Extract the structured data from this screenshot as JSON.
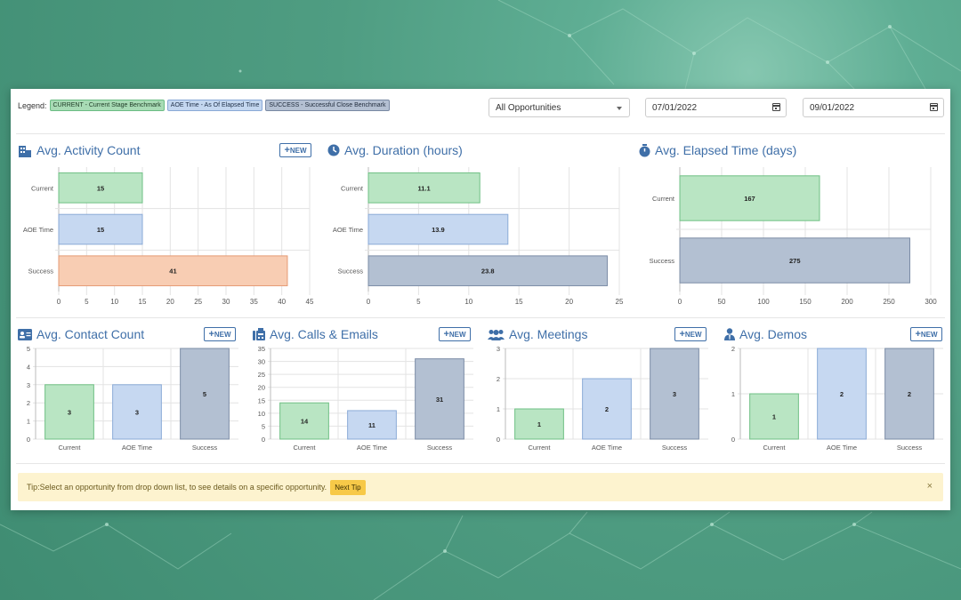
{
  "legend": {
    "label": "Legend:",
    "current": "CURRENT - Current Stage Benchmark",
    "aoe": "AOE Time - As Of Elapsed Time",
    "success": "SUCCESS - Successful Close Benchmark"
  },
  "filters": {
    "opportunity": "All Opportunities",
    "start_date": "07/01/2022",
    "end_date": "09/01/2022"
  },
  "new_label": "NEW",
  "tip": {
    "text": "Tip:Select an opportunity from drop down list, to see details on a specific opportunity.",
    "button": "Next Tip",
    "close": "×"
  },
  "colors": {
    "current_fill": "#b9e5c3",
    "current_stroke": "#6fc084",
    "aoe_fill": "#c6d8f1",
    "aoe_stroke": "#8aaad7",
    "success_orange_fill": "#f8cdb3",
    "success_orange_stroke": "#e59a74",
    "success_fill": "#b3c0d2",
    "success_stroke": "#7b8ca6",
    "title": "#3f6fa8"
  },
  "chart_data": [
    {
      "id": "activity",
      "type": "bar",
      "orientation": "horizontal",
      "title": "Avg. Activity Count",
      "icon": "building-icon",
      "has_new": true,
      "categories": [
        "Current",
        "AOE Time",
        "Success"
      ],
      "values": [
        15,
        15,
        41
      ],
      "labels": [
        "15",
        "15",
        "41"
      ],
      "success_color": "orange",
      "xlim": [
        0,
        45
      ],
      "ticks": [
        0,
        5,
        10,
        15,
        20,
        25,
        30,
        35,
        40,
        45
      ],
      "grid": true
    },
    {
      "id": "duration",
      "type": "bar",
      "orientation": "horizontal",
      "title": "Avg. Duration (hours)",
      "icon": "clock-icon",
      "has_new": false,
      "categories": [
        "Current",
        "AOE Time",
        "Success"
      ],
      "values": [
        11.1,
        13.9,
        23.8
      ],
      "labels": [
        "11.1",
        "13.9",
        "23.8"
      ],
      "success_color": "slate",
      "xlim": [
        0,
        25
      ],
      "ticks": [
        0,
        5,
        10,
        15,
        20,
        25
      ],
      "grid": true
    },
    {
      "id": "elapsed",
      "type": "bar",
      "orientation": "horizontal",
      "title": "Avg. Elapsed Time (days)",
      "icon": "stopwatch-icon",
      "has_new": false,
      "categories": [
        "Current",
        "Success"
      ],
      "values": [
        167,
        275
      ],
      "labels": [
        "167",
        "275"
      ],
      "success_color": "slate",
      "xlim": [
        0,
        300
      ],
      "ticks": [
        0,
        50,
        100,
        150,
        200,
        250,
        300
      ],
      "grid": true
    },
    {
      "id": "contact",
      "type": "bar",
      "orientation": "vertical",
      "title": "Avg. Contact Count",
      "icon": "contact-card-icon",
      "has_new": true,
      "categories": [
        "Current",
        "AOE Time",
        "Success"
      ],
      "values": [
        3,
        3,
        5
      ],
      "labels": [
        "3",
        "3",
        "5"
      ],
      "ylim": [
        0,
        5
      ],
      "ticks": [
        0,
        1,
        2,
        3,
        4,
        5
      ],
      "grid": true
    },
    {
      "id": "calls",
      "type": "bar",
      "orientation": "vertical",
      "title": "Avg. Calls & Emails",
      "icon": "fax-icon",
      "has_new": true,
      "categories": [
        "Current",
        "AOE Time",
        "Success"
      ],
      "values": [
        14,
        11,
        31
      ],
      "labels": [
        "14",
        "11",
        "31"
      ],
      "ylim": [
        0,
        35
      ],
      "ticks": [
        0,
        5,
        10,
        15,
        20,
        25,
        30,
        35
      ],
      "grid": true
    },
    {
      "id": "meetings",
      "type": "bar",
      "orientation": "vertical",
      "title": "Avg. Meetings",
      "icon": "users-icon",
      "has_new": true,
      "categories": [
        "Current",
        "AOE Time",
        "Success"
      ],
      "values": [
        1,
        2,
        3
      ],
      "labels": [
        "1",
        "2",
        "3"
      ],
      "ylim": [
        0,
        3
      ],
      "ticks": [
        0,
        1,
        2,
        3
      ],
      "grid": true
    },
    {
      "id": "demos",
      "type": "bar",
      "orientation": "vertical",
      "title": "Avg. Demos",
      "icon": "user-tie-icon",
      "has_new": true,
      "categories": [
        "Current",
        "AOE Time",
        "Success"
      ],
      "values": [
        1,
        2,
        2
      ],
      "labels": [
        "1",
        "2",
        "2"
      ],
      "ylim": [
        0,
        2
      ],
      "ticks": [
        0,
        1,
        2
      ],
      "grid": true
    }
  ]
}
